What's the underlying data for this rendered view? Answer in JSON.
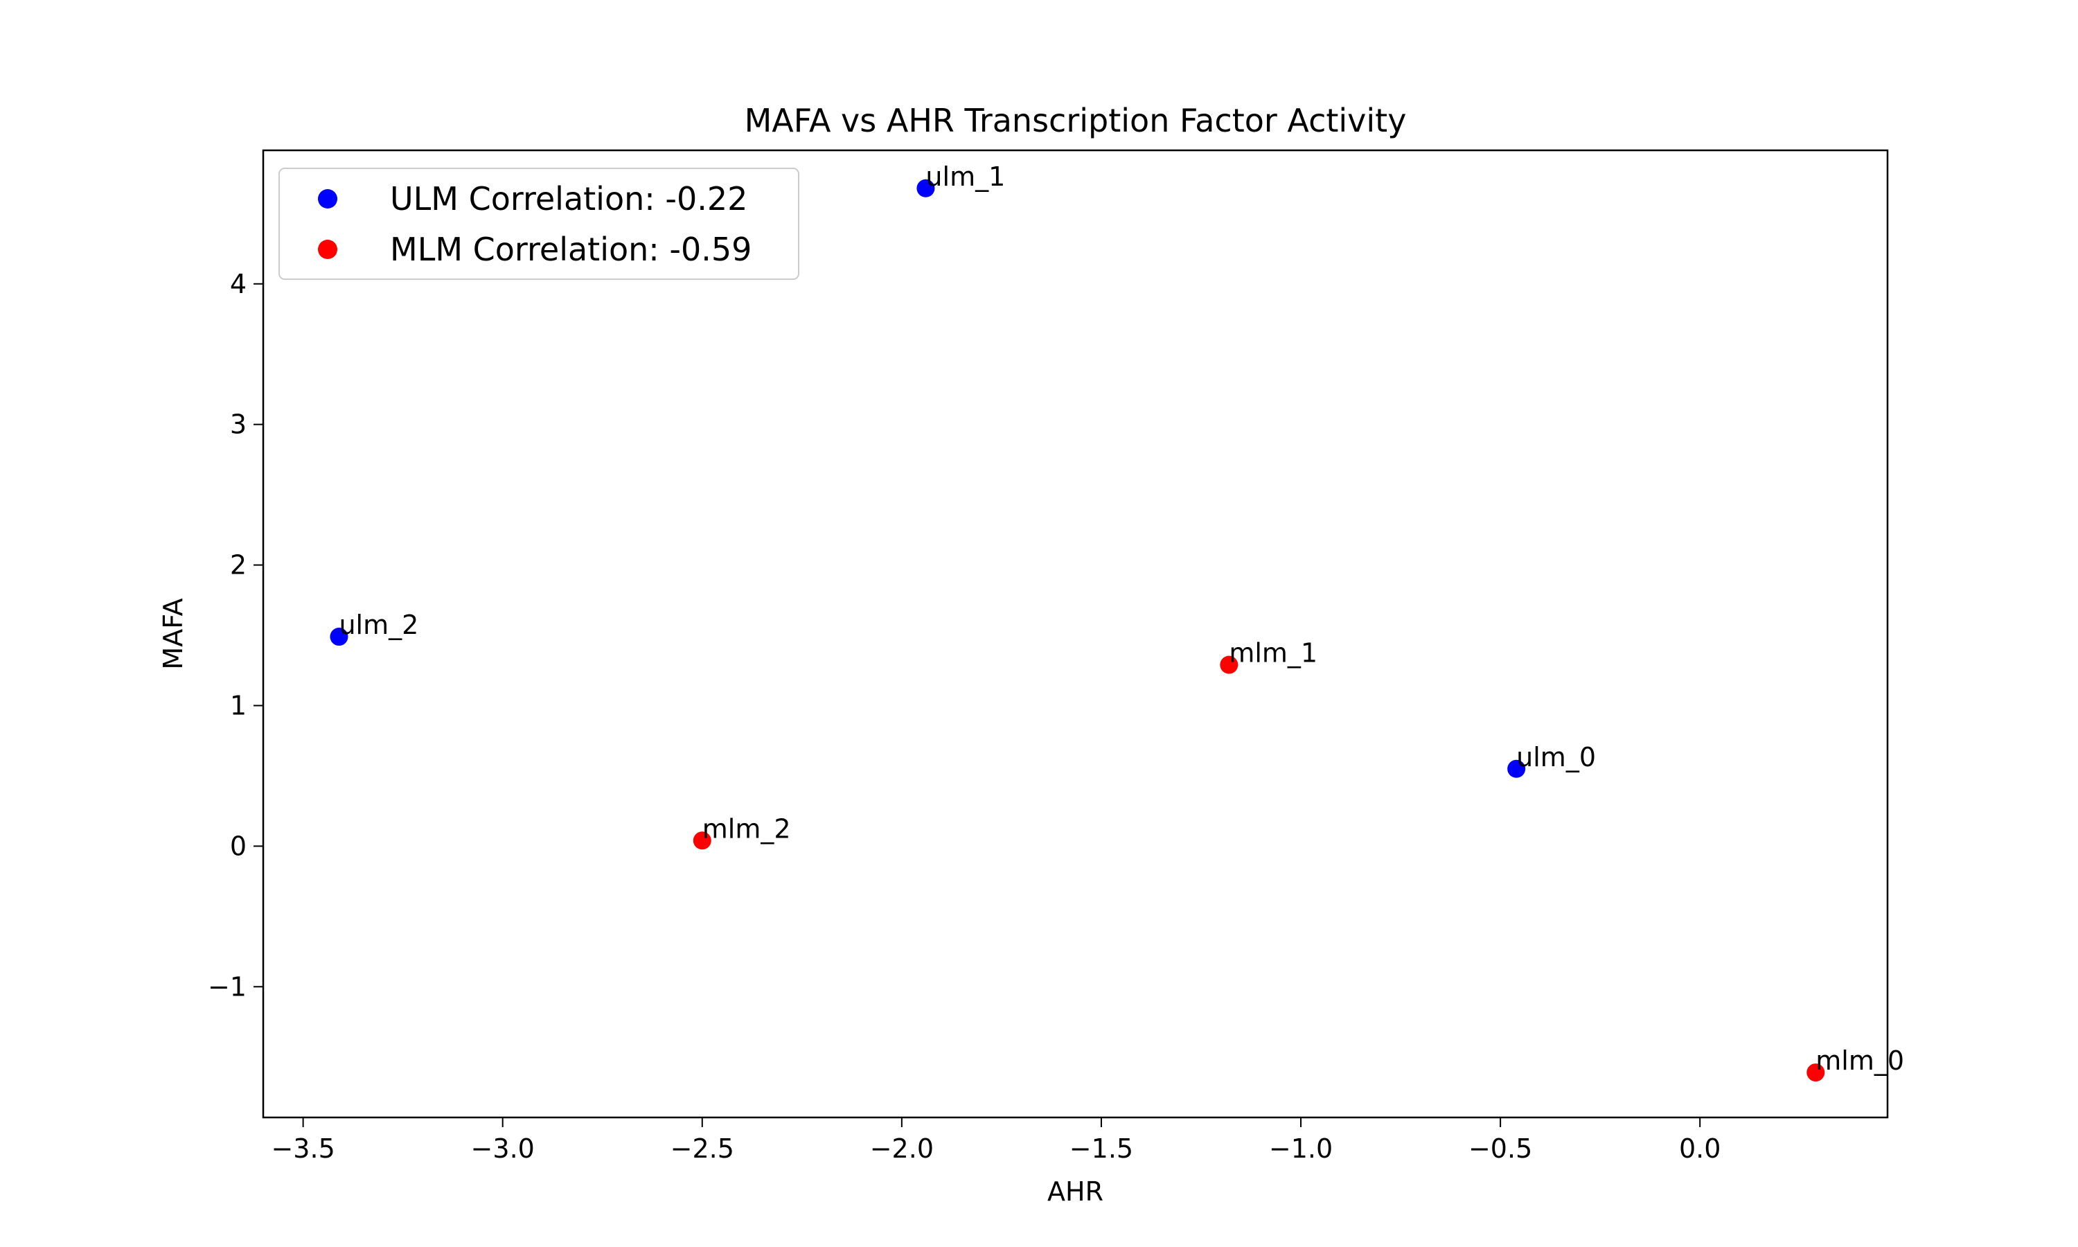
{
  "chart_data": {
    "type": "scatter",
    "title": "MAFA vs AHR Transcription Factor Activity",
    "xlabel": "AHR",
    "ylabel": "MAFA",
    "xlim": [
      -3.6,
      0.47
    ],
    "ylim": [
      -1.93,
      4.95
    ],
    "xticks": [
      -3.5,
      -3.0,
      -2.5,
      -2.0,
      -1.5,
      -1.0,
      -0.5,
      0.0
    ],
    "xtick_labels": [
      "−3.5",
      "−3.0",
      "−2.5",
      "−2.0",
      "−1.5",
      "−1.0",
      "−0.5",
      "0.0"
    ],
    "yticks": [
      -1,
      0,
      1,
      2,
      3,
      4
    ],
    "ytick_labels": [
      "−1",
      "0",
      "1",
      "2",
      "3",
      "4"
    ],
    "grid": false,
    "legend_position": "top-left",
    "series": [
      {
        "name": "ULM Correlation: -0.22",
        "color": "#0000ff",
        "points": [
          {
            "label": "ulm_0",
            "x": -0.46,
            "y": 0.55
          },
          {
            "label": "ulm_1",
            "x": -1.94,
            "y": 4.68
          },
          {
            "label": "ulm_2",
            "x": -3.41,
            "y": 1.49
          }
        ]
      },
      {
        "name": "MLM Correlation: -0.59",
        "color": "#ff0000",
        "points": [
          {
            "label": "mlm_0",
            "x": 0.29,
            "y": -1.61
          },
          {
            "label": "mlm_1",
            "x": -1.18,
            "y": 1.29
          },
          {
            "label": "mlm_2",
            "x": -2.5,
            "y": 0.04
          }
        ]
      }
    ]
  }
}
